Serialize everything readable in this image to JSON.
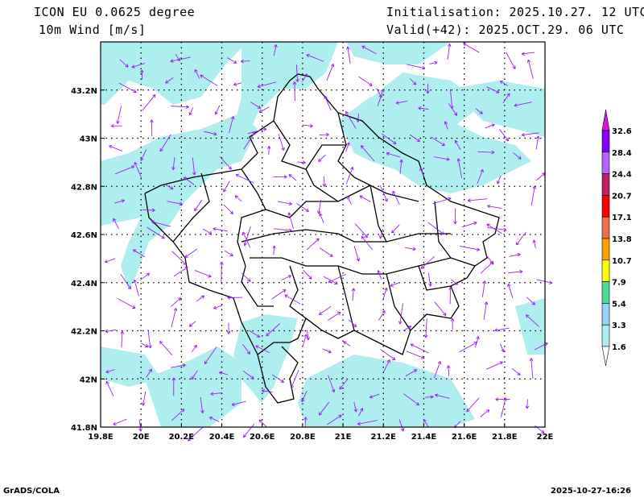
{
  "header": {
    "model": "ICON EU 0.0625 degree",
    "variable": "10m Wind [m/s]",
    "init": "Initialisation: 2025.10.27. 12 UTC",
    "valid": "Valid(+42): 2025.OCT.29. 06 UTC"
  },
  "map": {
    "lon_labels": [
      "19.8E",
      "20E",
      "20.2E",
      "20.4E",
      "20.6E",
      "20.8E",
      "21E",
      "21.2E",
      "21.4E",
      "21.6E",
      "21.8E",
      "22E"
    ],
    "lat_labels": [
      "43.2N",
      "43N",
      "42.8N",
      "42.6N",
      "42.4N",
      "42.2N",
      "42N",
      "41.8N"
    ],
    "lon_range": [
      19.8,
      22.0
    ],
    "lat_range": [
      41.8,
      43.4
    ],
    "vector_color": "#a020f0",
    "shade_color": "#afeeee"
  },
  "colorbar": {
    "labels": [
      "1.6",
      "3.3",
      "5.4",
      "7.9",
      "10.7",
      "13.8",
      "17.1",
      "20.7",
      "24.4",
      "28.4",
      "32.6"
    ],
    "colors": [
      "#ffffff",
      "#afeeee",
      "#96d2fa",
      "#50dc96",
      "#ffff00",
      "#ffa000",
      "#f06e50",
      "#ff0000",
      "#c02060",
      "#b464ff",
      "#8200ff",
      "#e010e0"
    ]
  },
  "footer": {
    "left": "GrADS/COLA",
    "right": "2025-10-27-16:26"
  }
}
